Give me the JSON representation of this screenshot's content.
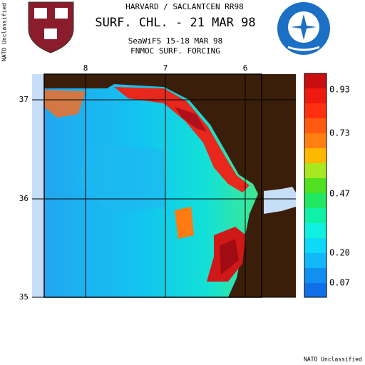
{
  "header": {
    "line1": "HARVARD / SACLANTCEN RR98",
    "title": "SURF. CHL. - 21 MAR 98",
    "line3": "SeaWiFS 15-18 MAR 98",
    "line4": "FNMOC SURF. FORCING"
  },
  "map": {
    "lon_labels": [
      "8",
      "7",
      "6"
    ],
    "lat_labels": [
      "37",
      "36",
      "35"
    ]
  },
  "colorbar": {
    "labels": [
      "0.93",
      "0.73",
      "0.47",
      "0.20",
      "0.07"
    ]
  },
  "classification": {
    "side": "NATO Unclassified",
    "bottom": "NATO Unclassified"
  }
}
